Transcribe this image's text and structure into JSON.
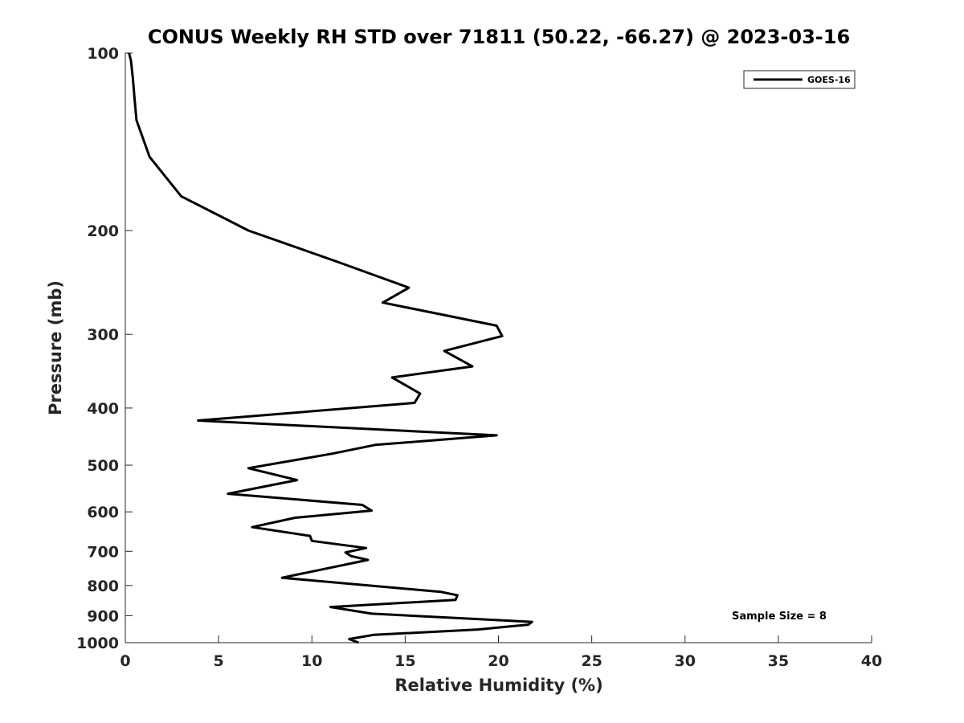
{
  "chart_data": {
    "type": "line",
    "title": "CONUS Weekly RH STD over 71811 (50.22, -66.27) @ 2023-03-16",
    "xlabel": "Relative Humidity (%)",
    "ylabel": "Pressure (mb)",
    "xlim": [
      0,
      40
    ],
    "ylim": [
      100,
      1000
    ],
    "y_scale": "log",
    "y_reversed": true,
    "x_ticks": [
      0,
      5,
      10,
      15,
      20,
      25,
      30,
      35,
      40
    ],
    "y_ticks": [
      100,
      200,
      300,
      400,
      500,
      600,
      700,
      800,
      900,
      1000
    ],
    "x_tick_labels": [
      "0",
      "5",
      "10",
      "15",
      "20",
      "25",
      "30",
      "35",
      "40"
    ],
    "y_tick_labels": [
      "100",
      "200",
      "300",
      "400",
      "500",
      "600",
      "700",
      "800",
      "900",
      "1000"
    ],
    "legend": {
      "position": "top-right",
      "entries": [
        "GOES-16"
      ]
    },
    "annotation": "Sample Size = 8",
    "grid": false,
    "series": [
      {
        "name": "GOES-16",
        "color": "#000000",
        "points": [
          [
            0.2,
            100
          ],
          [
            0.3,
            103
          ],
          [
            0.4,
            110
          ],
          [
            0.5,
            120
          ],
          [
            0.6,
            130
          ],
          [
            1.3,
            150
          ],
          [
            3.0,
            175
          ],
          [
            6.6,
            200
          ],
          [
            11.2,
            225
          ],
          [
            15.2,
            250
          ],
          [
            13.8,
            265
          ],
          [
            19.9,
            290
          ],
          [
            20.2,
            302
          ],
          [
            17.1,
            320
          ],
          [
            18.6,
            340
          ],
          [
            14.3,
            355
          ],
          [
            15.8,
            378
          ],
          [
            15.5,
            392
          ],
          [
            3.9,
            420
          ],
          [
            19.9,
            445
          ],
          [
            13.4,
            462
          ],
          [
            11.1,
            478
          ],
          [
            6.6,
            506
          ],
          [
            9.2,
            530
          ],
          [
            5.5,
            559
          ],
          [
            12.7,
            584
          ],
          [
            13.2,
            597
          ],
          [
            9.1,
            614
          ],
          [
            6.8,
            637
          ],
          [
            9.9,
            659
          ],
          [
            10.0,
            672
          ],
          [
            12.9,
            691
          ],
          [
            11.8,
            703
          ],
          [
            12.1,
            713
          ],
          [
            13.0,
            724
          ],
          [
            9.6,
            762
          ],
          [
            8.4,
            776
          ],
          [
            16.9,
            820
          ],
          [
            17.8,
            831
          ],
          [
            17.7,
            846
          ],
          [
            11.0,
            870
          ],
          [
            13.2,
            893
          ],
          [
            21.8,
            922
          ],
          [
            21.6,
            932
          ],
          [
            18.9,
            950
          ],
          [
            13.3,
            970
          ],
          [
            12.0,
            986
          ],
          [
            12.5,
            1000
          ]
        ]
      }
    ]
  }
}
